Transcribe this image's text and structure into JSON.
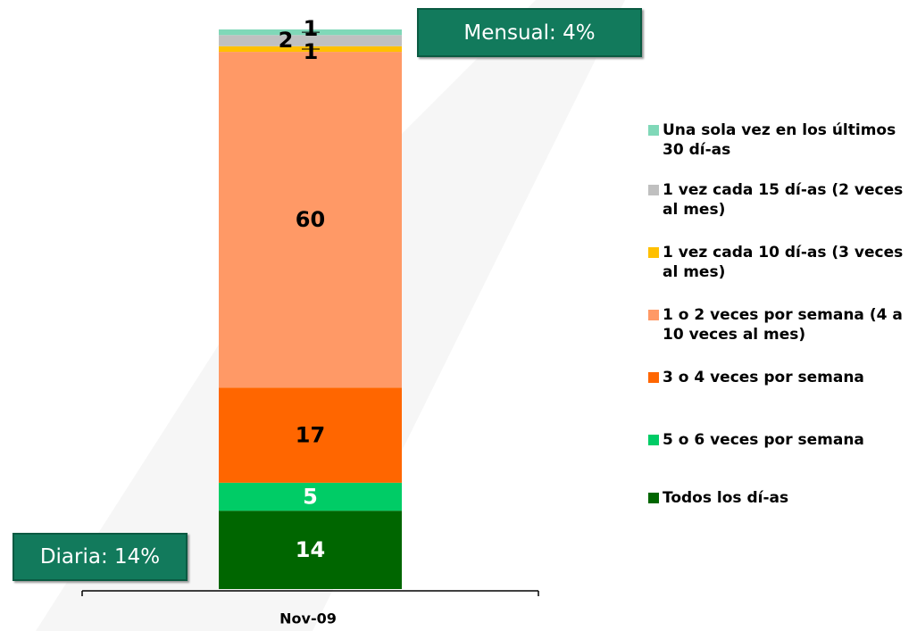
{
  "chart_data": {
    "type": "stacked-bar",
    "categories": [
      "Nov-09"
    ],
    "series": [
      {
        "name": "Todos los dí-as",
        "color": "#006600",
        "values": [
          14
        ]
      },
      {
        "name": "5 o 6 veces por semana",
        "color": "#00cc66",
        "values": [
          5
        ]
      },
      {
        "name": "3 o 4 veces por semana",
        "color": "#ff6600",
        "values": [
          17
        ]
      },
      {
        "name": "1 o 2 veces por semana (4 a 10 veces al mes)",
        "color": "#ff9966",
        "values": [
          60
        ]
      },
      {
        "name": "1 vez cada 10 dí-as (3 veces al mes)",
        "color": "#ffc000",
        "values": [
          1
        ]
      },
      {
        "name": "1 vez cada 15 dí-as (2 veces al mes)",
        "color": "#c0c0c0",
        "values": [
          2
        ]
      },
      {
        "name": "Una sola vez en los últimos 30 dí-as",
        "color": "#80d8b8",
        "values": [
          1
        ]
      }
    ],
    "annotations": [
      "Mensual: 4%",
      "Diaria: 14%"
    ]
  }
}
